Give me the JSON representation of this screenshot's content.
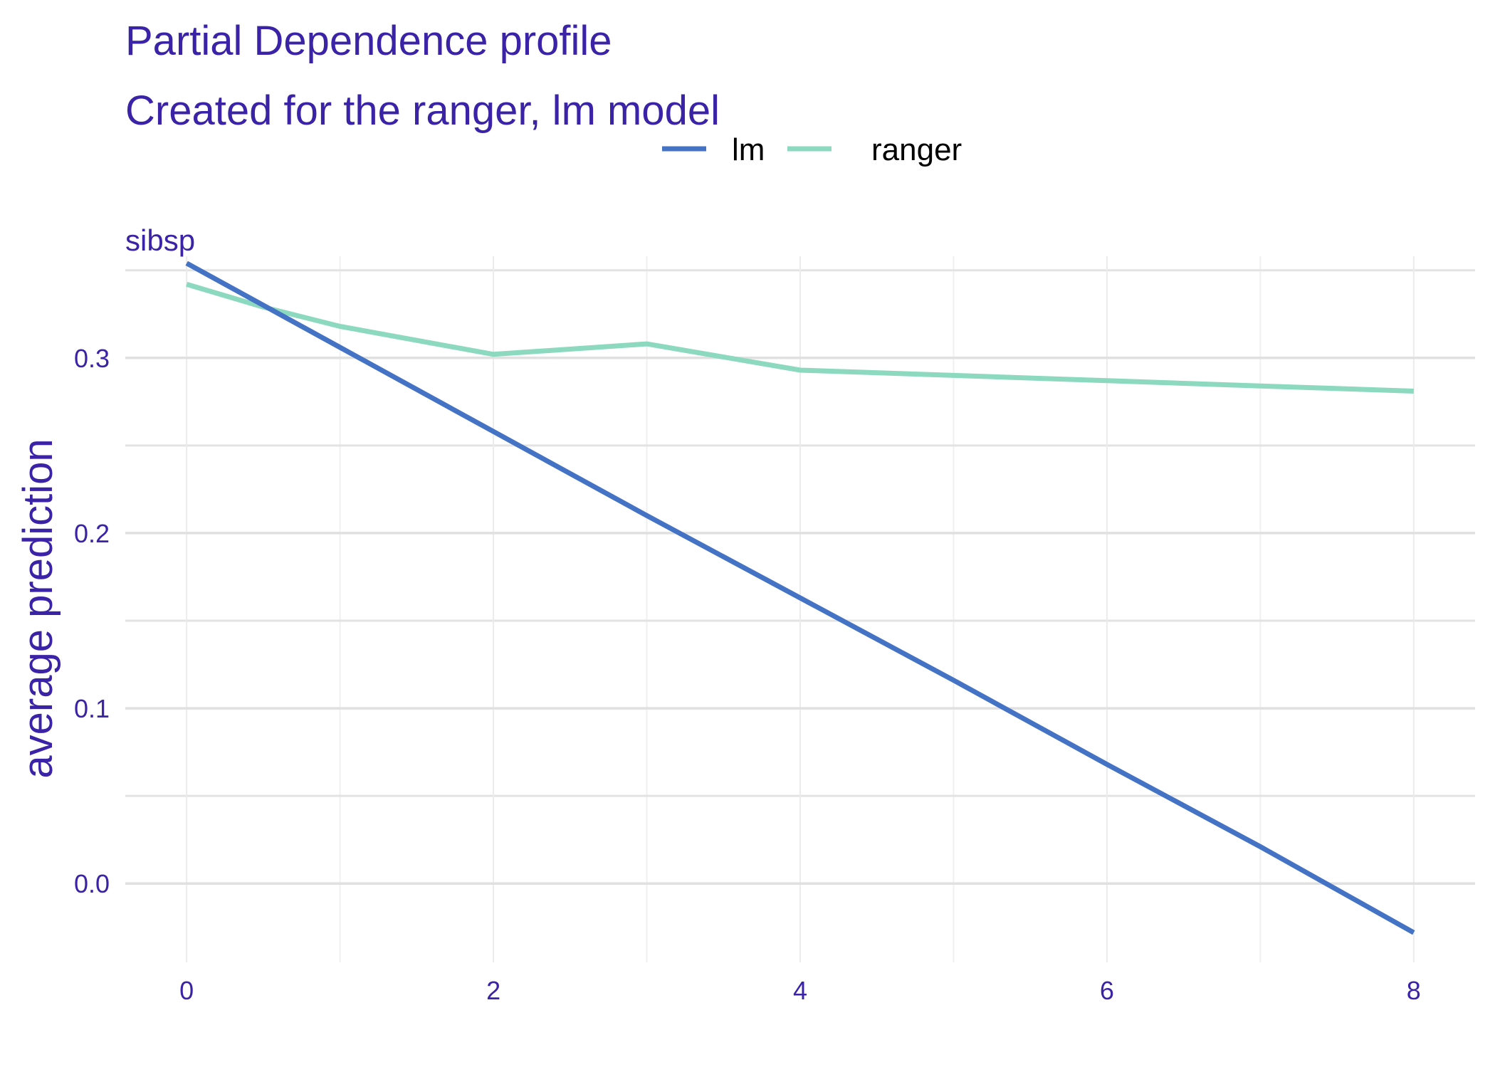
{
  "chart_data": {
    "type": "line",
    "title": "Partial Dependence profile",
    "subtitle": "Created for the ranger, lm model",
    "panel_label": "sibsp",
    "xlabel": "",
    "ylabel": "average prediction",
    "xlim": [
      -0.4,
      8.4
    ],
    "ylim": [
      -0.045,
      0.358
    ],
    "x_ticks": [
      0,
      2,
      4,
      6,
      8
    ],
    "x_tick_labels": [
      "0",
      "2",
      "4",
      "6",
      "8"
    ],
    "y_ticks": [
      0.0,
      0.1,
      0.2,
      0.3
    ],
    "y_tick_labels": [
      "0.0",
      "0.1",
      "0.2",
      "0.3"
    ],
    "grid": true,
    "legend_position": "top",
    "series": [
      {
        "name": "lm",
        "color": "#4472c4",
        "x": [
          0,
          1,
          2,
          3,
          4,
          5,
          6,
          7,
          8
        ],
        "y": [
          0.354,
          0.306,
          0.258,
          0.21,
          0.163,
          0.116,
          0.068,
          0.021,
          -0.028
        ]
      },
      {
        "name": "ranger",
        "color": "#8dd9bf",
        "x": [
          0,
          0.5,
          1,
          2,
          3,
          4,
          5,
          6,
          7,
          8
        ],
        "y": [
          0.342,
          0.329,
          0.318,
          0.302,
          0.308,
          0.293,
          0.29,
          0.287,
          0.284,
          0.281
        ]
      }
    ]
  }
}
